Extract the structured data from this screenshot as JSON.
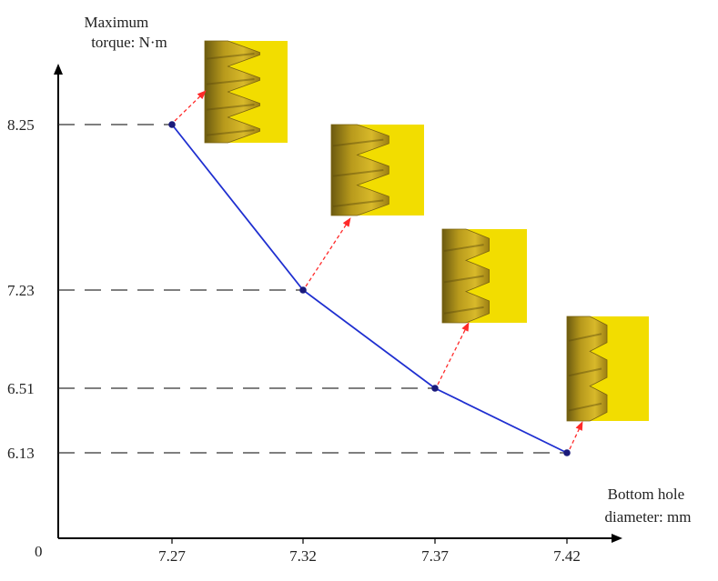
{
  "chart_data": {
    "type": "line",
    "origin_label": "0",
    "ylabel": [
      "Maximum",
      "torque: N·m"
    ],
    "xlabel": [
      "Bottom hole",
      "diameter: mm"
    ],
    "x": [
      7.27,
      7.32,
      7.37,
      7.42
    ],
    "y": [
      8.25,
      7.23,
      6.51,
      6.13
    ],
    "x_tick_labels": [
      "7.27",
      "7.32",
      "7.37",
      "7.42"
    ],
    "y_tick_labels": [
      "8.25",
      "7.23",
      "6.51",
      "6.13"
    ],
    "line_color": "#1f2fd0",
    "marker_color": "#1a1a7a",
    "arrow_color": "#ff2a2a",
    "thread_insets": [
      {
        "x": 7.27,
        "y": 8.25,
        "profile": "sharp"
      },
      {
        "x": 7.32,
        "y": 7.23,
        "profile": "rounded"
      },
      {
        "x": 7.37,
        "y": 6.51,
        "profile": "truncated"
      },
      {
        "x": 7.42,
        "y": 6.13,
        "profile": "shallow"
      }
    ]
  }
}
